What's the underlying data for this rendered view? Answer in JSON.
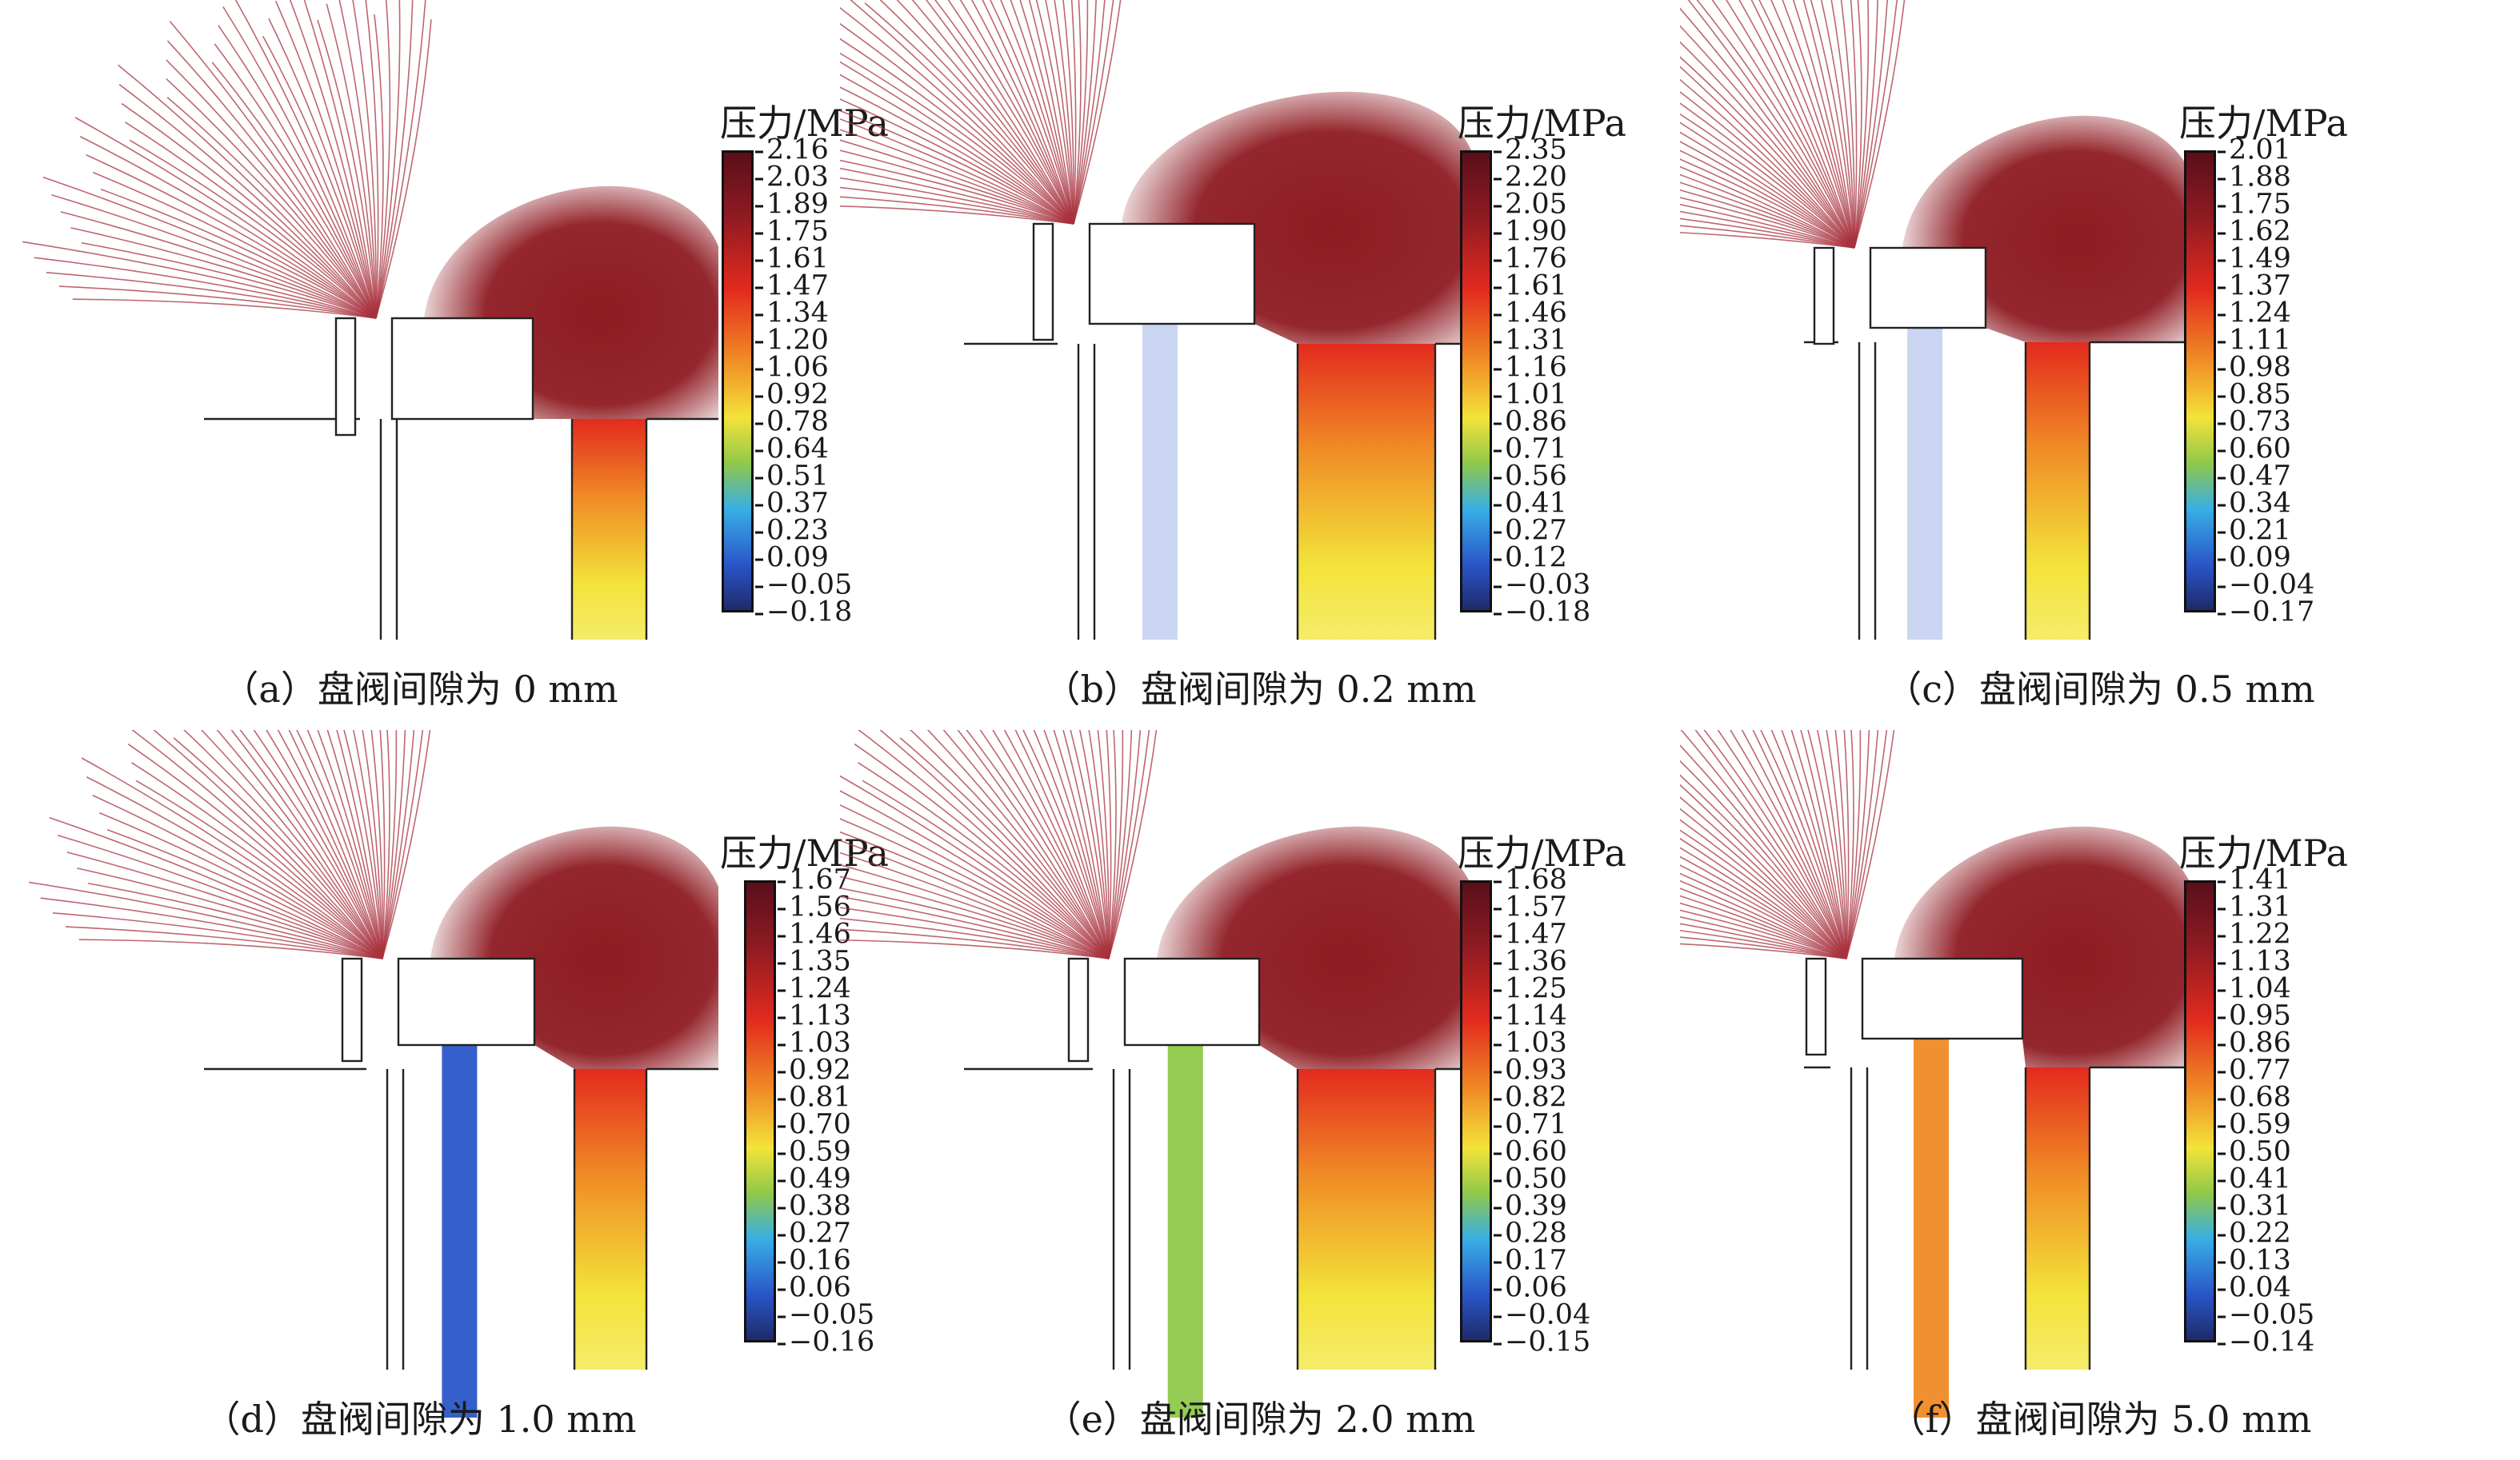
{
  "legend_title": "压力/MPa",
  "panels": [
    {
      "id": "a",
      "caption": "（a）盘阀间隙为 0 mm",
      "ticks": [
        "2.16",
        "2.03",
        "1.89",
        "1.75",
        "1.61",
        "1.47",
        "1.34",
        "1.20",
        "1.06",
        "0.92",
        "0.78",
        "0.64",
        "0.51",
        "0.37",
        "0.23",
        "0.09",
        "−0.05",
        "−0.18"
      ]
    },
    {
      "id": "b",
      "caption": "（b）盘阀间隙为 0.2 mm",
      "ticks": [
        "2.35",
        "2.20",
        "2.05",
        "1.90",
        "1.76",
        "1.61",
        "1.46",
        "1.31",
        "1.16",
        "1.01",
        "0.86",
        "0.71",
        "0.56",
        "0.41",
        "0.27",
        "0.12",
        "−0.03",
        "−0.18"
      ]
    },
    {
      "id": "c",
      "caption": "（c）盘阀间隙为 0.5 mm",
      "ticks": [
        "2.01",
        "1.88",
        "1.75",
        "1.62",
        "1.49",
        "1.37",
        "1.24",
        "1.11",
        "0.98",
        "0.85",
        "0.73",
        "0.60",
        "0.47",
        "0.34",
        "0.21",
        "0.09",
        "−0.04",
        "−0.17"
      ]
    },
    {
      "id": "d",
      "caption": "（d）盘阀间隙为 1.0 mm",
      "ticks": [
        "1.67",
        "1.56",
        "1.46",
        "1.35",
        "1.24",
        "1.13",
        "1.03",
        "0.92",
        "0.81",
        "0.70",
        "0.59",
        "0.49",
        "0.38",
        "0.27",
        "0.16",
        "0.06",
        "−0.05",
        "−0.16"
      ]
    },
    {
      "id": "e",
      "caption": "（e）盘阀间隙为 2.0 mm",
      "ticks": [
        "1.68",
        "1.57",
        "1.47",
        "1.36",
        "1.25",
        "1.14",
        "1.03",
        "0.93",
        "0.82",
        "0.71",
        "0.60",
        "0.50",
        "0.39",
        "0.28",
        "0.17",
        "0.06",
        "−0.04",
        "−0.15"
      ]
    },
    {
      "id": "f",
      "caption": "（f）盘阀间隙为 5.0 mm",
      "ticks": [
        "1.41",
        "1.31",
        "1.22",
        "1.13",
        "1.04",
        "0.95",
        "0.86",
        "0.77",
        "0.68",
        "0.59",
        "0.50",
        "0.41",
        "0.31",
        "0.22",
        "0.13",
        "0.04",
        "−0.05",
        "−0.14"
      ]
    }
  ],
  "colors": {
    "top": "#5a0f1a",
    "dark_red": "#8e1b22",
    "red": "#e32a1e",
    "orange": "#f08a25",
    "yellow": "#f3e33a",
    "green": "#8fc84a",
    "cyan": "#38aee6",
    "blue": "#2a56c8",
    "bottom": "#1e2a6a",
    "contour": "#a8333f",
    "outline": "#222222"
  }
}
